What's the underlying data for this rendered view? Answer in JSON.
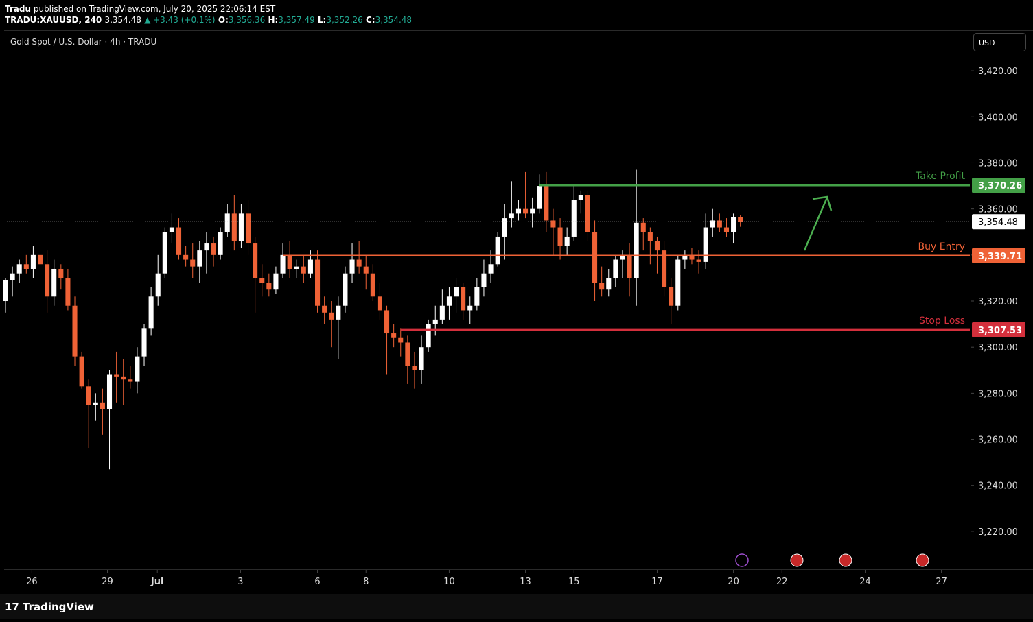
{
  "header": {
    "publisher": "Tradu",
    "published": "published on TradingView.com, July 20, 2025 22:06:14 EST",
    "symbol": "TRADU:XAUUSD, 240",
    "price": "3,354.48",
    "change": "▲ +3.43 (+0.1%)",
    "o_label": "O:",
    "o": "3,356.36",
    "h_label": "H:",
    "h": "3,357.49",
    "l_label": "L:",
    "l": "3,352.26",
    "c_label": "C:",
    "c": "3,354.48"
  },
  "currency": "USD",
  "brand": "TradingView",
  "chart_data": {
    "type": "candlestick",
    "title": "Gold Spot / U.S. Dollar · 4h · TRADU",
    "up_color": "#ffffff",
    "down_color": "#ef6236",
    "ylim": [
      3203.6,
      3437.3
    ],
    "yticks": [
      {
        "value": 3220,
        "label": "3,220.00"
      },
      {
        "value": 3240,
        "label": "3,240.00"
      },
      {
        "value": 3260,
        "label": "3,260.00"
      },
      {
        "value": 3280,
        "label": "3,280.00"
      },
      {
        "value": 3300,
        "label": "3,300.00"
      },
      {
        "value": 3320,
        "label": "3,320.00"
      },
      {
        "value": 3340,
        "label": "3,340.00"
      },
      {
        "value": 3360,
        "label": "3,360.00"
      },
      {
        "value": 3380,
        "label": "3,380.00"
      },
      {
        "value": 3400,
        "label": "3,400.00"
      },
      {
        "value": 3420,
        "label": "3,420.00"
      }
    ],
    "xlim": [
      -0.1,
      139.1
    ],
    "xticks": [
      {
        "value": 3.8,
        "label": "26"
      },
      {
        "value": 14.7,
        "label": "29"
      },
      {
        "value": 21.9,
        "label": "Jul"
      },
      {
        "value": 33.9,
        "label": "3"
      },
      {
        "value": 45,
        "label": "6"
      },
      {
        "value": 52,
        "label": "8"
      },
      {
        "value": 64,
        "label": "10"
      },
      {
        "value": 75,
        "label": "13"
      },
      {
        "value": 82,
        "label": "15"
      },
      {
        "value": 94,
        "label": "17"
      },
      {
        "value": 105,
        "label": "20"
      },
      {
        "value": 112,
        "label": "22"
      },
      {
        "value": 124,
        "label": "24"
      },
      {
        "value": 135,
        "label": "27"
      }
    ],
    "candles": [
      [
        3320,
        3330,
        3315,
        3329
      ],
      [
        3329,
        3335,
        3322,
        3332
      ],
      [
        3332,
        3338,
        3328,
        3336
      ],
      [
        3336,
        3340,
        3332,
        3334
      ],
      [
        3334,
        3344,
        3330,
        3340
      ],
      [
        3340,
        3346,
        3332,
        3336
      ],
      [
        3336,
        3342,
        3315,
        3322
      ],
      [
        3322,
        3338,
        3318,
        3334
      ],
      [
        3334,
        3336,
        3325,
        3330
      ],
      [
        3330,
        3334,
        3316,
        3318
      ],
      [
        3318,
        3322,
        3292,
        3296
      ],
      [
        3296,
        3298,
        3282,
        3283
      ],
      [
        3283,
        3286,
        3256,
        3275
      ],
      [
        3275,
        3280,
        3268,
        3276
      ],
      [
        3276,
        3282,
        3262,
        3273
      ],
      [
        3273,
        3290,
        3247,
        3288
      ],
      [
        3288,
        3298,
        3276,
        3287
      ],
      [
        3287,
        3295,
        3275,
        3286
      ],
      [
        3286,
        3292,
        3282,
        3285
      ],
      [
        3285,
        3300,
        3280,
        3296
      ],
      [
        3296,
        3310,
        3292,
        3308
      ],
      [
        3308,
        3326,
        3305,
        3322
      ],
      [
        3322,
        3340,
        3318,
        3332
      ],
      [
        3332,
        3352,
        3330,
        3350
      ],
      [
        3350,
        3358,
        3345,
        3352
      ],
      [
        3352,
        3356,
        3338,
        3340
      ],
      [
        3340,
        3344,
        3335,
        3338
      ],
      [
        3338,
        3345,
        3330,
        3335
      ],
      [
        3335,
        3346,
        3328,
        3342
      ],
      [
        3342,
        3350,
        3332,
        3345
      ],
      [
        3345,
        3348,
        3335,
        3340
      ],
      [
        3340,
        3352,
        3338,
        3350
      ],
      [
        3350,
        3362,
        3348,
        3358
      ],
      [
        3358,
        3366,
        3342,
        3346
      ],
      [
        3346,
        3362,
        3343,
        3358
      ],
      [
        3358,
        3364,
        3340,
        3345
      ],
      [
        3345,
        3348,
        3315,
        3330
      ],
      [
        3330,
        3336,
        3322,
        3328
      ],
      [
        3328,
        3332,
        3322,
        3325
      ],
      [
        3325,
        3335,
        3323,
        3332
      ],
      [
        3332,
        3345,
        3330,
        3340
      ],
      [
        3340,
        3346,
        3330,
        3334
      ],
      [
        3334,
        3338,
        3330,
        3335
      ],
      [
        3335,
        3340,
        3328,
        3332
      ],
      [
        3332,
        3342,
        3330,
        3338
      ],
      [
        3338,
        3342,
        3315,
        3318
      ],
      [
        3318,
        3322,
        3310,
        3315
      ],
      [
        3315,
        3320,
        3300,
        3312
      ],
      [
        3312,
        3322,
        3295,
        3318
      ],
      [
        3318,
        3335,
        3315,
        3332
      ],
      [
        3332,
        3345,
        3328,
        3338
      ],
      [
        3338,
        3346,
        3332,
        3335
      ],
      [
        3335,
        3340,
        3325,
        3332
      ],
      [
        3332,
        3336,
        3320,
        3322
      ],
      [
        3322,
        3328,
        3312,
        3316
      ],
      [
        3316,
        3318,
        3288,
        3306
      ],
      [
        3306,
        3310,
        3300,
        3304
      ],
      [
        3304,
        3308,
        3296,
        3302
      ],
      [
        3302,
        3305,
        3284,
        3292
      ],
      [
        3292,
        3298,
        3282,
        3290
      ],
      [
        3290,
        3305,
        3284,
        3300
      ],
      [
        3300,
        3312,
        3298,
        3310
      ],
      [
        3310,
        3318,
        3305,
        3312
      ],
      [
        3312,
        3325,
        3310,
        3318
      ],
      [
        3318,
        3326,
        3312,
        3322
      ],
      [
        3322,
        3330,
        3315,
        3326
      ],
      [
        3326,
        3328,
        3312,
        3316
      ],
      [
        3316,
        3322,
        3310,
        3318
      ],
      [
        3318,
        3330,
        3316,
        3326
      ],
      [
        3326,
        3338,
        3322,
        3332
      ],
      [
        3332,
        3342,
        3328,
        3336
      ],
      [
        3336,
        3350,
        3335,
        3348
      ],
      [
        3348,
        3362,
        3338,
        3356
      ],
      [
        3356,
        3372,
        3352,
        3358
      ],
      [
        3358,
        3364,
        3355,
        3360
      ],
      [
        3360,
        3376,
        3356,
        3358
      ],
      [
        3358,
        3365,
        3352,
        3360
      ],
      [
        3360,
        3375,
        3358,
        3370
      ],
      [
        3370,
        3376,
        3350,
        3355
      ],
      [
        3355,
        3360,
        3340,
        3352
      ],
      [
        3352,
        3356,
        3338,
        3344
      ],
      [
        3344,
        3352,
        3340,
        3348
      ],
      [
        3348,
        3370,
        3346,
        3364
      ],
      [
        3364,
        3368,
        3358,
        3366
      ],
      [
        3366,
        3368,
        3346,
        3350
      ],
      [
        3350,
        3355,
        3320,
        3328
      ],
      [
        3328,
        3335,
        3322,
        3325
      ],
      [
        3325,
        3334,
        3322,
        3330
      ],
      [
        3330,
        3340,
        3326,
        3338
      ],
      [
        3338,
        3342,
        3330,
        3340
      ],
      [
        3340,
        3345,
        3322,
        3330
      ],
      [
        3330,
        3377,
        3318,
        3354
      ],
      [
        3354,
        3356,
        3342,
        3350
      ],
      [
        3350,
        3352,
        3336,
        3346
      ],
      [
        3346,
        3348,
        3332,
        3342
      ],
      [
        3342,
        3346,
        3322,
        3326
      ],
      [
        3326,
        3330,
        3310,
        3318
      ],
      [
        3318,
        3340,
        3316,
        3338
      ],
      [
        3338,
        3342,
        3334,
        3340
      ],
      [
        3340,
        3343,
        3336,
        3338
      ],
      [
        3338,
        3342,
        3332,
        3337
      ],
      [
        3337,
        3358,
        3334,
        3352
      ],
      [
        3352,
        3360,
        3348,
        3355
      ],
      [
        3355,
        3358,
        3350,
        3352
      ],
      [
        3352,
        3356,
        3348,
        3350
      ],
      [
        3350,
        3358,
        3345,
        3356.36
      ],
      [
        3356.36,
        3357.49,
        3352.26,
        3354.48
      ]
    ],
    "last_price": {
      "value": 3354.48,
      "label": "3,354.48"
    },
    "levels": [
      {
        "name": "Take Profit",
        "value": 3370.26,
        "label": "3,370.26",
        "from": 77,
        "color": "#43a047"
      },
      {
        "name": "Buy Entry",
        "value": 3339.71,
        "label": "3,339.71",
        "from": 40,
        "color": "#ef6236"
      },
      {
        "name": "Stop Loss",
        "value": 3307.53,
        "label": "3,307.53",
        "from": 57,
        "color": "#d32f3c"
      }
    ]
  }
}
